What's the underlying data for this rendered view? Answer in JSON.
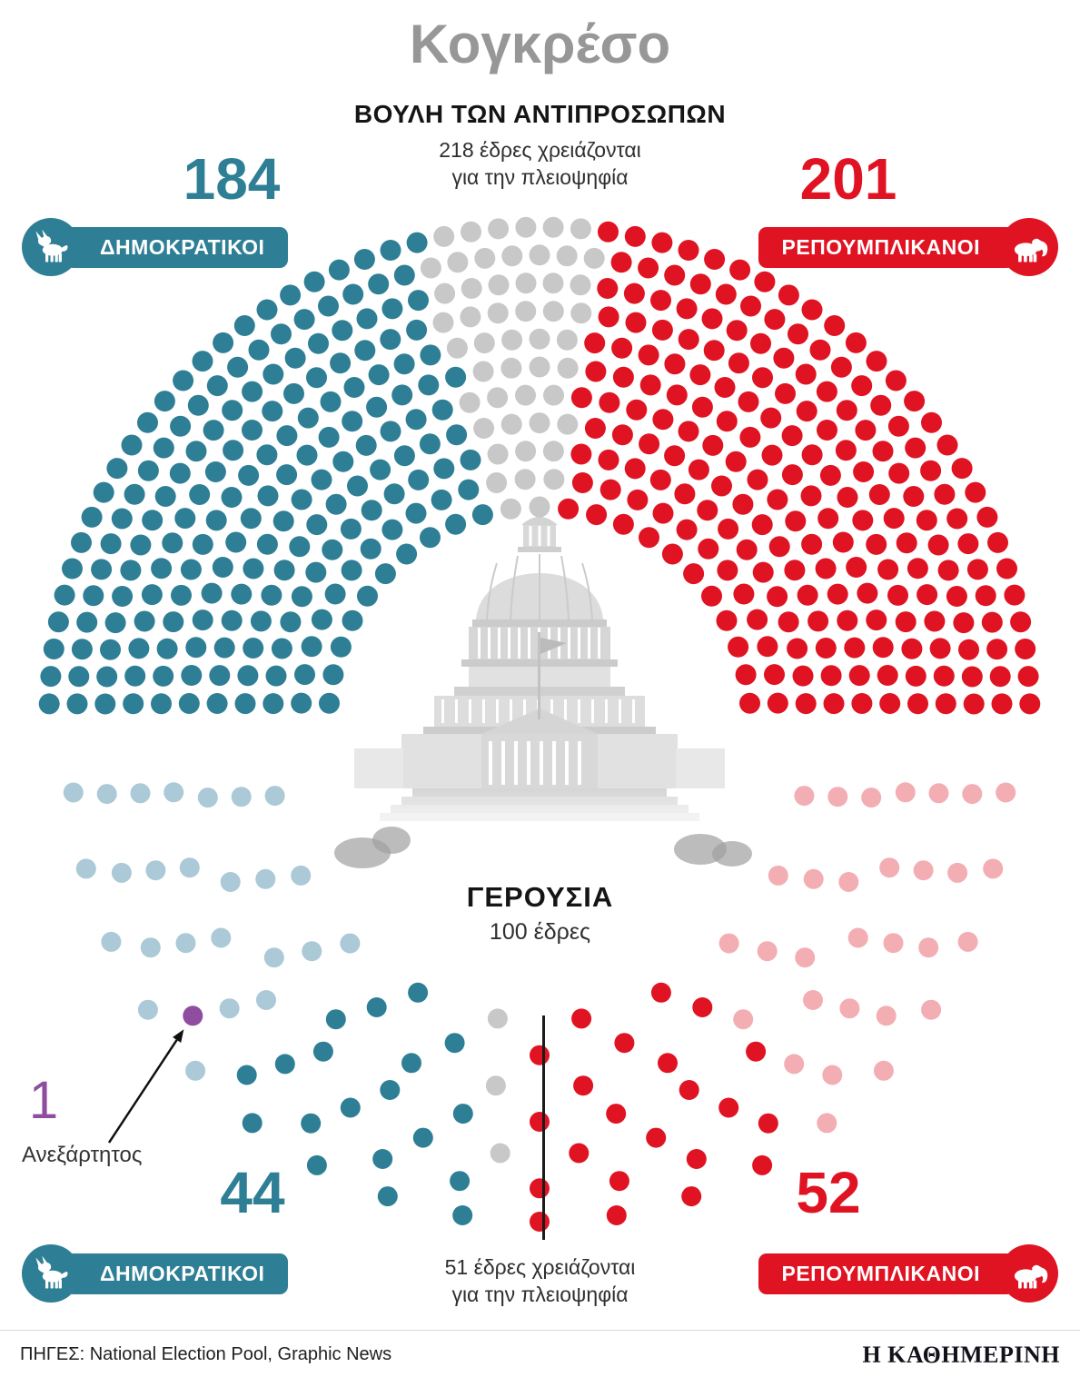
{
  "title": "Κογκρέσο",
  "colors": {
    "democrat": "#2e7f95",
    "democrat_faded": "#abc9d7",
    "republican": "#e01322",
    "republican_faded": "#f3aeb4",
    "undecided": "#c8c8c8",
    "independent": "#8f4d9f"
  },
  "house": {
    "heading": "ΒΟΥΛΗ ΤΩΝ ΑΝΤΙΠΡΟΣΩΠΩΝ",
    "note_line1": "218 έδρες χρειάζονται",
    "note_line2": "για την πλειοψηφία",
    "democrats": {
      "label": "ΔΗΜΟΚΡΑΤΙΚΟΙ",
      "seats": 184
    },
    "republicans": {
      "label": "ΡΕΠΟΥΜΠΛΙΚΑΝΟΙ",
      "seats": 201
    }
  },
  "senate": {
    "heading": "ΓΕΡΟΥΣΙΑ",
    "subheading": "100 έδρες",
    "note_line1": "51 έδρες χρειάζονται",
    "note_line2": "για την πλειοψηφία",
    "democrats": {
      "label": "ΔΗΜΟΚΡΑΤΙΚΟΙ",
      "seats": 44
    },
    "republicans": {
      "label": "ΡΕΠΟΥΜΠΛΙΚΑΝΟΙ",
      "seats": 52
    },
    "independent": {
      "label": "Ανεξάρτητος",
      "seats": 1
    }
  },
  "footer": {
    "sources": "ΠΗΓΕΣ: National Election Pool, Graphic News",
    "brand": "Η ΚΑΘΗΜΕΡΙΝΗ"
  },
  "chart_data": [
    {
      "id": "house",
      "type": "parliament",
      "title": "ΒΟΥΛΗ ΤΩΝ ΑΝΤΙΠΡΟΣΩΠΩΝ",
      "orientation": "upper-semicircle",
      "total_seats": 435,
      "majority_threshold": 218,
      "segments": [
        {
          "name": "democrats",
          "label": "ΔΗΜΟΚΡΑΤΙΚΟΙ",
          "seats": 184,
          "color": "#2e7f95"
        },
        {
          "name": "undecided",
          "seats": 50,
          "color": "#c8c8c8"
        },
        {
          "name": "republicans",
          "label": "ΡΕΠΟΥΜΠΛΙΚΑΝΟΙ",
          "seats": 201,
          "color": "#e01322"
        }
      ]
    },
    {
      "id": "senate",
      "type": "parliament",
      "title": "ΓΕΡΟΥΣΙΑ",
      "orientation": "lower-semicircle",
      "total_seats": 100,
      "majority_threshold": 51,
      "totals": {
        "democrats": 44,
        "republicans": 52,
        "independent": 1,
        "undecided": 3
      },
      "segments": [
        {
          "name": "democrats-not-up",
          "seats": 19,
          "color": "#abc9d7"
        },
        {
          "name": "independent",
          "label": "Ανεξάρτητος",
          "seats": 1,
          "color": "#8f4d9f"
        },
        {
          "name": "democrats-not-up-2",
          "seats": 6,
          "color": "#abc9d7"
        },
        {
          "name": "democrats-elected",
          "label": "ΔΗΜΟΚΡΑΤΙΚΟΙ",
          "seats": 19,
          "color": "#2e7f95"
        },
        {
          "name": "undecided",
          "seats": 3,
          "color": "#c8c8c8"
        },
        {
          "name": "republicans-elected",
          "label": "ΡΕΠΟΥΜΠΛΙΚΑΝΟΙ",
          "seats": 22,
          "color": "#e01322"
        },
        {
          "name": "republicans-not-up",
          "seats": 30,
          "color": "#f3aeb4"
        }
      ]
    }
  ]
}
